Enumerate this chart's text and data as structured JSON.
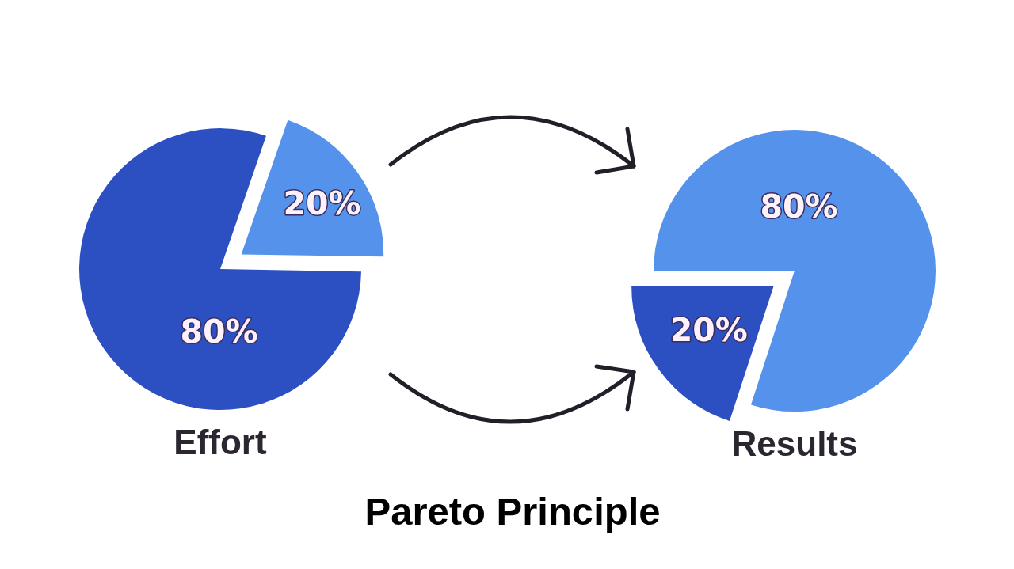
{
  "chart_data": [
    {
      "type": "pie",
      "title": "Effort",
      "categories": [
        null,
        null
      ],
      "values": [
        20,
        80
      ],
      "colors": [
        "#5592ec",
        "#2c50c2"
      ],
      "value_labels": [
        "20%",
        "80%"
      ],
      "annotations": [
        "Pareto Principle"
      ]
    },
    {
      "type": "pie",
      "title": "Results",
      "categories": [
        null,
        null
      ],
      "values": [
        80,
        20
      ],
      "colors": [
        "#5592ec",
        "#2c50c2"
      ],
      "value_labels": [
        "80%",
        "20%"
      ]
    }
  ]
}
